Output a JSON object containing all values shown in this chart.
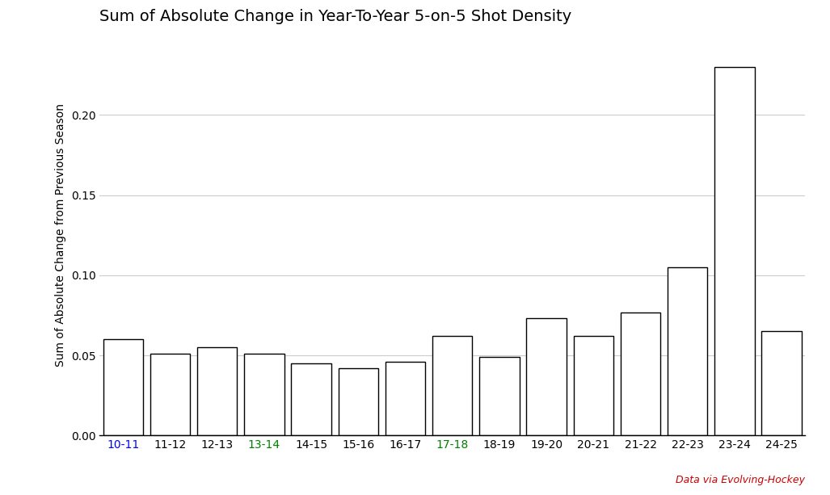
{
  "title": "Sum of Absolute Change in Year-To-Year 5-on-5 Shot Density",
  "xlabel": "",
  "ylabel": "Sum of Absolute Change from Previous Season",
  "categories": [
    "10-11",
    "11-12",
    "12-13",
    "13-14",
    "14-15",
    "15-16",
    "16-17",
    "17-18",
    "18-19",
    "19-20",
    "20-21",
    "21-22",
    "22-23",
    "23-24",
    "24-25"
  ],
  "values": [
    0.06,
    0.051,
    0.055,
    0.051,
    0.045,
    0.042,
    0.046,
    0.062,
    0.049,
    0.073,
    0.062,
    0.077,
    0.105,
    0.23,
    0.065
  ],
  "bar_color": "#ffffff",
  "bar_edge_color": "#000000",
  "tick_colors": [
    "#0000ff",
    "#000000",
    "#000000",
    "#008000",
    "#000000",
    "#000000",
    "#000000",
    "#008000",
    "#000000",
    "#000000",
    "#000000",
    "#000000",
    "#000000",
    "#000000",
    "#000000"
  ],
  "ylim": [
    0,
    0.25
  ],
  "yticks": [
    0.0,
    0.05,
    0.1,
    0.15,
    0.2
  ],
  "background_color": "#ffffff",
  "grid_color": "#cccccc",
  "title_fontsize": 14,
  "axis_fontsize": 10,
  "tick_fontsize": 10,
  "credit": "Data via Evolving-Hockey",
  "credit_color": "#cc0000",
  "bar_width": 0.85
}
